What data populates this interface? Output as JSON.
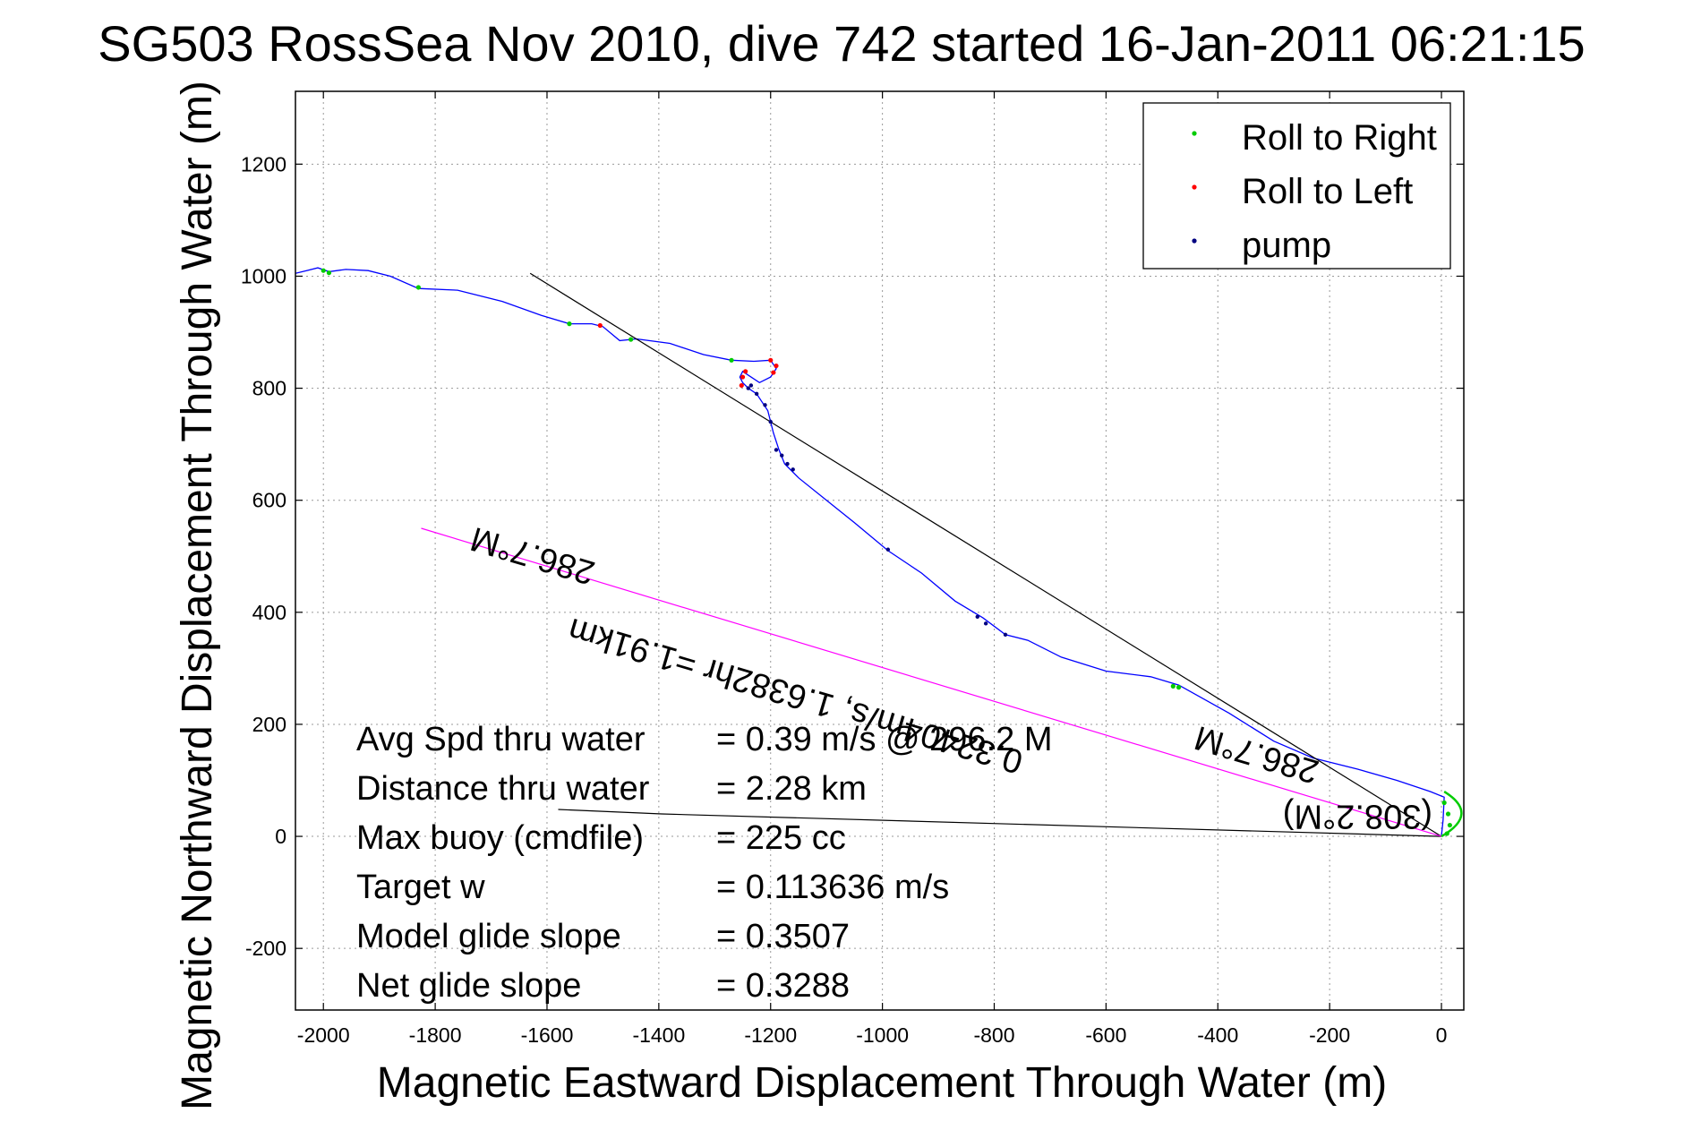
{
  "chart_data": {
    "type": "line",
    "title": "SG503 RossSea Nov 2010, dive 742 started 16-Jan-2011 06:21:15",
    "xlabel": "Magnetic Eastward Displacement Through Water (m)",
    "ylabel": "Magnetic Northward Displacement Through Water (m)",
    "xlim": [
      -2050,
      40
    ],
    "ylim": [
      -310,
      1330
    ],
    "xticks": [
      -2000,
      -1800,
      -1600,
      -1400,
      -1200,
      -1000,
      -800,
      -600,
      -400,
      -200,
      0
    ],
    "yticks": [
      -200,
      0,
      200,
      400,
      600,
      800,
      1000,
      1200
    ],
    "grid": true,
    "legend_position": "top-right",
    "legend": [
      {
        "label": "Roll to Right",
        "color": "#00cc00"
      },
      {
        "label": "Roll to Left",
        "color": "#ff0000"
      },
      {
        "label": "pump",
        "color": "#000080"
      }
    ],
    "series": [
      {
        "color": "#0000ff",
        "points": [
          [
            0,
            0
          ],
          [
            3,
            30
          ],
          [
            5,
            70
          ],
          [
            -20,
            80
          ],
          [
            -80,
            100
          ],
          [
            -150,
            120
          ],
          [
            -230,
            140
          ],
          [
            -300,
            170
          ],
          [
            -380,
            220
          ],
          [
            -470,
            270
          ],
          [
            -520,
            285
          ],
          [
            -600,
            295
          ],
          [
            -680,
            320
          ],
          [
            -740,
            350
          ],
          [
            -780,
            360
          ],
          [
            -820,
            390
          ],
          [
            -870,
            420
          ],
          [
            -930,
            470
          ],
          [
            -990,
            510
          ],
          [
            -1050,
            560
          ],
          [
            -1100,
            600
          ],
          [
            -1150,
            640
          ],
          [
            -1175,
            665
          ],
          [
            -1185,
            690
          ],
          [
            -1195,
            720
          ],
          [
            -1205,
            760
          ],
          [
            -1225,
            790
          ],
          [
            -1240,
            800
          ],
          [
            -1250,
            810
          ],
          [
            -1255,
            820
          ],
          [
            -1250,
            830
          ],
          [
            -1235,
            820
          ],
          [
            -1220,
            810
          ],
          [
            -1200,
            820
          ],
          [
            -1190,
            835
          ],
          [
            -1200,
            850
          ],
          [
            -1230,
            848
          ],
          [
            -1270,
            850
          ],
          [
            -1320,
            860
          ],
          [
            -1380,
            880
          ],
          [
            -1440,
            888
          ],
          [
            -1470,
            885
          ],
          [
            -1500,
            910
          ],
          [
            -1520,
            915
          ],
          [
            -1560,
            915
          ],
          [
            -1610,
            930
          ],
          [
            -1680,
            955
          ],
          [
            -1760,
            975
          ],
          [
            -1830,
            978
          ],
          [
            -1880,
            1000
          ],
          [
            -1920,
            1010
          ],
          [
            -1960,
            1012
          ],
          [
            -1990,
            1008
          ],
          [
            -2010,
            1015
          ],
          [
            -2030,
            1010
          ],
          [
            -2050,
            1005
          ]
        ]
      },
      {
        "color": "#000000",
        "points": [
          [
            0,
            0
          ],
          [
            -1630,
            1005
          ]
        ]
      },
      {
        "color": "#000000",
        "points": [
          [
            0,
            0
          ],
          [
            -1395,
            40
          ],
          [
            -1580,
            48
          ]
        ]
      },
      {
        "color": "#ff00ff",
        "points": [
          [
            0,
            0
          ],
          [
            -1825,
            550
          ]
        ]
      }
    ],
    "roll_right_points": [
      [
        -2000,
        1010
      ],
      [
        -1990,
        1006
      ],
      [
        -1830,
        980
      ],
      [
        -1560,
        915
      ],
      [
        -1450,
        887
      ],
      [
        -1270,
        850
      ],
      [
        -480,
        268
      ],
      [
        -470,
        266
      ],
      [
        5,
        60
      ],
      [
        12,
        40
      ],
      [
        15,
        20
      ],
      [
        10,
        5
      ]
    ],
    "roll_left_points": [
      [
        -1505,
        912
      ],
      [
        -1252,
        805
      ],
      [
        -1250,
        820
      ],
      [
        -1245,
        830
      ],
      [
        -1200,
        850
      ],
      [
        -1190,
        840
      ],
      [
        -1195,
        828
      ]
    ],
    "pump_points": [
      [
        -1240,
        800
      ],
      [
        -1235,
        805
      ],
      [
        -1225,
        790
      ],
      [
        -1210,
        770
      ],
      [
        -1200,
        740
      ],
      [
        -1190,
        690
      ],
      [
        -1180,
        680
      ],
      [
        -1170,
        665
      ],
      [
        -1160,
        655
      ],
      [
        -990,
        512
      ],
      [
        -830,
        392
      ],
      [
        -815,
        380
      ],
      [
        -780,
        360
      ]
    ],
    "annotations": [
      {
        "text": "286.7°M",
        "x": -1620,
        "y": 520,
        "angle": 196.5
      },
      {
        "text": "0.32404m/s, 1.6382hr =1.91km",
        "x": -1150,
        "y": 270,
        "angle": 196.5
      },
      {
        "text": "286.7°M",
        "x": -325,
        "y": 165,
        "angle": 196.5
      },
      {
        "text": "(308.2°M)",
        "x": -150,
        "y": 55,
        "angle": 180
      }
    ]
  },
  "stats": [
    {
      "label": "Avg Spd thru water",
      "value": "=  0.39 m/s @ 296.2  M"
    },
    {
      "label": "Distance thru water",
      "value": "=  2.28 km"
    },
    {
      "label": "Max buoy (cmdfile)",
      "value": "= 225 cc"
    },
    {
      "label": "Target w",
      "value": "= 0.113636 m/s"
    },
    {
      "label": "Model glide slope",
      "value": "= 0.3507"
    },
    {
      "label": "Net glide slope",
      "value": "= 0.3288"
    }
  ]
}
